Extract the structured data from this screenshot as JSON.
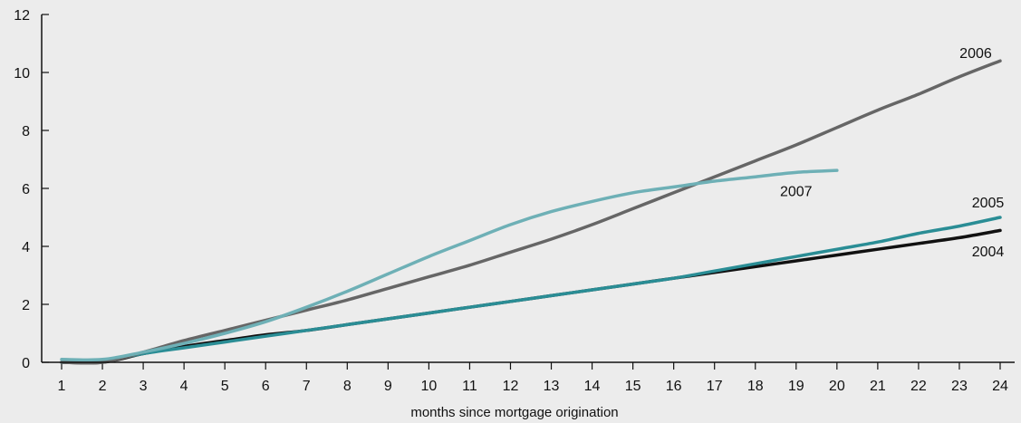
{
  "chart_data": {
    "type": "line",
    "xlabel": "months since mortgage origination",
    "ylabel": "",
    "x": [
      1,
      2,
      3,
      4,
      5,
      6,
      7,
      8,
      9,
      10,
      11,
      12,
      13,
      14,
      15,
      16,
      17,
      18,
      19,
      20,
      21,
      22,
      23,
      24
    ],
    "xlim": [
      1,
      24
    ],
    "ylim": [
      0,
      12
    ],
    "yticks": [
      0,
      2,
      4,
      6,
      8,
      10,
      12
    ],
    "xticks": [
      1,
      2,
      3,
      4,
      5,
      6,
      7,
      8,
      9,
      10,
      11,
      12,
      13,
      14,
      15,
      16,
      17,
      18,
      19,
      20,
      21,
      22,
      23,
      24
    ],
    "grid": false,
    "series": [
      {
        "name": "2004",
        "color": "#111111",
        "label_anchor": 23.7,
        "label_pos": "below",
        "values": [
          0.0,
          0.0,
          0.3,
          0.55,
          0.75,
          0.95,
          1.1,
          1.3,
          1.5,
          1.7,
          1.9,
          2.1,
          2.3,
          2.5,
          2.7,
          2.9,
          3.1,
          3.3,
          3.5,
          3.7,
          3.9,
          4.1,
          4.3,
          4.55
        ]
      },
      {
        "name": "2005",
        "color": "#2a8d95",
        "label_anchor": 23.7,
        "label_pos": "above",
        "values": [
          0.0,
          0.05,
          0.3,
          0.5,
          0.7,
          0.9,
          1.1,
          1.3,
          1.5,
          1.7,
          1.9,
          2.1,
          2.3,
          2.5,
          2.7,
          2.9,
          3.15,
          3.4,
          3.65,
          3.9,
          4.15,
          4.45,
          4.7,
          5.0
        ]
      },
      {
        "name": "2006",
        "color": "#666666",
        "label_anchor": 23.4,
        "label_pos": "above",
        "values": [
          0.0,
          0.0,
          0.35,
          0.75,
          1.1,
          1.45,
          1.8,
          2.15,
          2.55,
          2.95,
          3.35,
          3.8,
          4.25,
          4.75,
          5.3,
          5.85,
          6.4,
          6.95,
          7.5,
          8.1,
          8.7,
          9.25,
          9.85,
          10.4
        ]
      },
      {
        "name": "2007",
        "color": "#6eb0b6",
        "label_anchor": 19.0,
        "label_pos": "below",
        "values": [
          0.1,
          0.1,
          0.35,
          0.65,
          1.0,
          1.4,
          1.9,
          2.45,
          3.05,
          3.65,
          4.2,
          4.75,
          5.2,
          5.55,
          5.85,
          6.05,
          6.25,
          6.4,
          6.55,
          6.62,
          null,
          null,
          null,
          null
        ]
      }
    ]
  }
}
